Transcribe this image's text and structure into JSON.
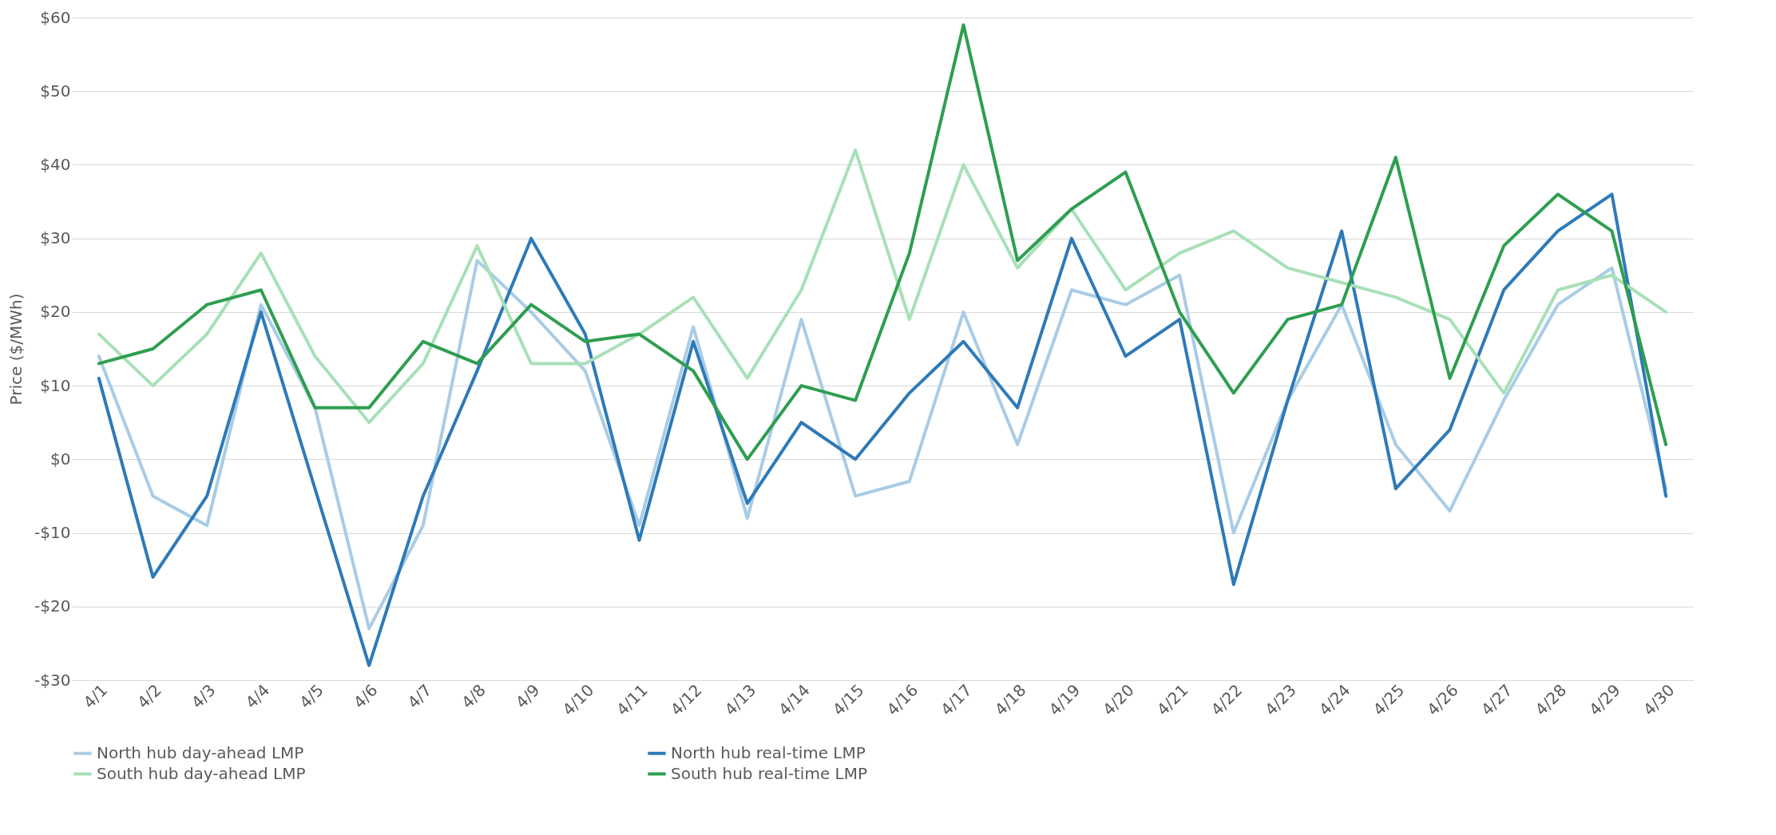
{
  "chart_data": {
    "type": "line",
    "ylabel": "Price ($/MWh)",
    "categories": [
      "4/1",
      "4/2",
      "4/3",
      "4/4",
      "4/5",
      "4/6",
      "4/7",
      "4/8",
      "4/9",
      "4/10",
      "4/11",
      "4/12",
      "4/13",
      "4/14",
      "4/15",
      "4/16",
      "4/17",
      "4/18",
      "4/19",
      "4/20",
      "4/21",
      "4/22",
      "4/23",
      "4/24",
      "4/25",
      "4/26",
      "4/27",
      "4/28",
      "4/29",
      "4/30"
    ],
    "series": [
      {
        "name": "North hub day-ahead LMP",
        "color": "#a9cce6",
        "values": [
          14,
          -5,
          -9,
          21,
          7,
          -23,
          -9,
          27,
          20,
          12,
          -9,
          18,
          -8,
          19,
          -5,
          -3,
          20,
          2,
          23,
          21,
          25,
          -10,
          8,
          21,
          2,
          -7,
          8,
          21,
          26,
          -4
        ]
      },
      {
        "name": "North hub real-time LMP",
        "color": "#2e7ab8",
        "values": [
          11,
          -16,
          -5,
          20,
          -4,
          -28,
          -5,
          12,
          30,
          17,
          -11,
          16,
          -6,
          5,
          0,
          9,
          16,
          7,
          30,
          14,
          19,
          -17,
          8,
          31,
          -4,
          4,
          23,
          31,
          36,
          -5
        ]
      },
      {
        "name": "South hub day-ahead LMP",
        "color": "#a8e0b8",
        "values": [
          17,
          10,
          17,
          28,
          14,
          5,
          13,
          29,
          13,
          13,
          17,
          22,
          11,
          23,
          42,
          19,
          40,
          26,
          34,
          23,
          28,
          31,
          26,
          24,
          22,
          19,
          9,
          23,
          25,
          20
        ]
      },
      {
        "name": "South hub real-time LMP",
        "color": "#2e9e4f",
        "values": [
          13,
          15,
          21,
          23,
          7,
          7,
          16,
          13,
          21,
          16,
          17,
          12,
          0,
          10,
          8,
          28,
          59,
          27,
          34,
          39,
          20,
          9,
          19,
          21,
          41,
          11,
          29,
          36,
          31,
          2
        ]
      }
    ],
    "ylim": [
      -30,
      60
    ],
    "yticks": [
      {
        "value": -30,
        "label": "-$30"
      },
      {
        "value": -20,
        "label": "-$20"
      },
      {
        "value": -10,
        "label": "-$10"
      },
      {
        "value": 0,
        "label": "$0"
      },
      {
        "value": 10,
        "label": "$10"
      },
      {
        "value": 20,
        "label": "$20"
      },
      {
        "value": 30,
        "label": "$30"
      },
      {
        "value": 40,
        "label": "$40"
      },
      {
        "value": 50,
        "label": "$50"
      },
      {
        "value": 60,
        "label": "$60"
      }
    ],
    "grid": "y",
    "legend": "bottom",
    "marker": "none",
    "line_style": "solid"
  }
}
